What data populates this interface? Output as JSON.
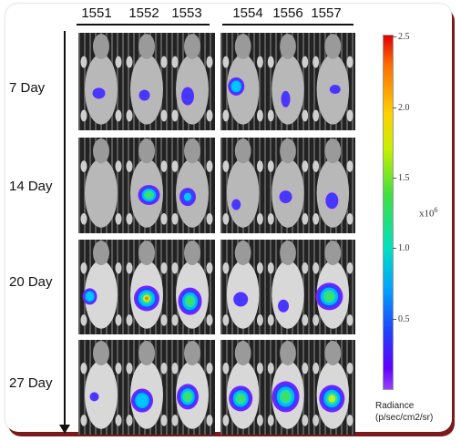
{
  "mouse_ids": [
    "1551",
    "1552",
    "1553",
    "1554",
    "1556",
    "1557"
  ],
  "days": [
    "7 Day",
    "14 Day",
    "20 Day",
    "27 Day"
  ],
  "colorbar": {
    "ticks": [
      "2.5",
      "2.0",
      "1.5",
      "1.0",
      "0.5"
    ],
    "multiplier_base": "x10",
    "multiplier_exp": "6",
    "label_line1": "Radiance",
    "label_line2": "(p/sec/cm2/sr)",
    "color_top": "#e00000",
    "color_bottom": "#9a40ff"
  }
}
